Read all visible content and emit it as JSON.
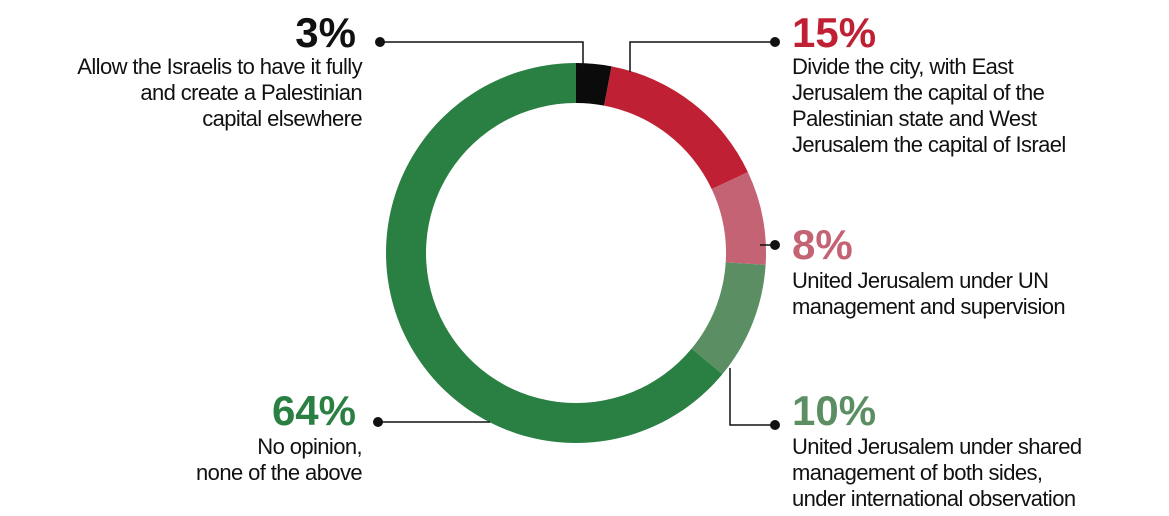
{
  "chart_data": {
    "type": "donut",
    "categories": [
      "Allow the Israelis to have it fully\nand create a Palestinian\ncapital elsewhere",
      "Divide the city, with East\nJerusalem the capital of the\nPalestinian state and West\nJerusalem the capital of Israel",
      "United Jerusalem under UN\nmanagement and supervision",
      "United Jerusalem under shared\nmanagement of both sides,\nunder international observation",
      "No opinion,\nnone of the above"
    ],
    "values": [
      3,
      15,
      8,
      10,
      64
    ],
    "value_labels": [
      "3%",
      "15%",
      "8%",
      "10%",
      "64%"
    ],
    "colors": [
      "#0b0b0b",
      "#c02033",
      "#c46373",
      "#5b8f63",
      "#2a8043"
    ]
  }
}
